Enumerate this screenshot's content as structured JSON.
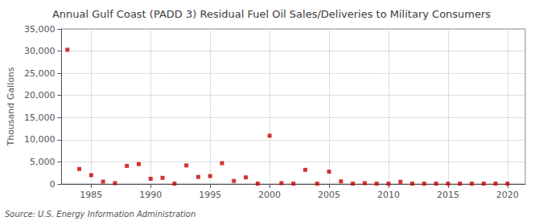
{
  "chart_data": {
    "type": "scatter",
    "title": "Annual Gulf Coast (PADD 3) Residual Fuel Oil Sales/Deliveries to Military Consumers",
    "ylabel": "Thousand Gallons",
    "annotation": "Source: U.S. Energy Information Administration",
    "x": [
      1983,
      1984,
      1985,
      1986,
      1987,
      1988,
      1989,
      1990,
      1991,
      1992,
      1993,
      1994,
      1995,
      1996,
      1997,
      1998,
      1999,
      2000,
      2001,
      2002,
      2003,
      2004,
      2005,
      2006,
      2007,
      2008,
      2009,
      2010,
      2011,
      2012,
      2013,
      2014,
      2015,
      2016,
      2017,
      2018,
      2019,
      2020
    ],
    "values": [
      30300,
      3400,
      2000,
      550,
      200,
      4100,
      4500,
      1200,
      1400,
      100,
      4200,
      1600,
      1800,
      4700,
      700,
      1500,
      100,
      10900,
      200,
      100,
      3200,
      100,
      2800,
      600,
      100,
      200,
      100,
      100,
      500,
      100,
      100,
      100,
      100,
      100,
      100,
      100,
      100,
      100
    ],
    "color": "#cc0000",
    "marker": "square",
    "xlim": [
      1982.5,
      2021.5
    ],
    "xticks": [
      1985,
      1990,
      1995,
      2000,
      2005,
      2010,
      2015,
      2020
    ],
    "ylim": [
      0,
      35000
    ],
    "yticks": [
      0,
      {
        "value": 5000,
        "label": "5,000"
      },
      {
        "value": 10000,
        "label": "10,000"
      },
      {
        "value": 15000,
        "label": "15,000"
      },
      {
        "value": 20000,
        "label": "20,000"
      },
      {
        "value": 25000,
        "label": "25,000"
      },
      {
        "value": 30000,
        "label": "30,000"
      },
      {
        "value": 35000,
        "label": "35,000"
      }
    ],
    "grid": true
  }
}
